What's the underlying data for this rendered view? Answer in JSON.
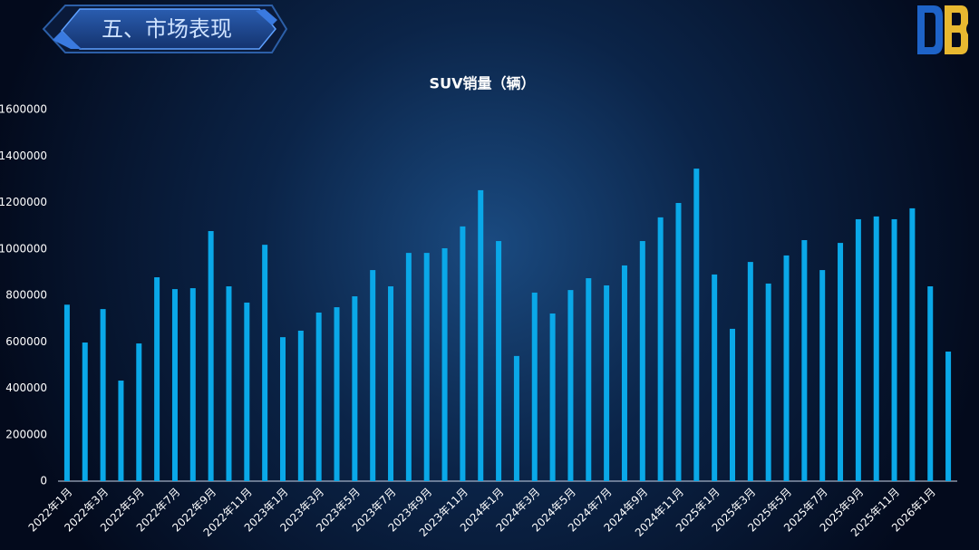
{
  "header": {
    "title": "五、市场表现"
  },
  "chart_data": {
    "type": "bar",
    "title": "SUV销量（辆）",
    "categories": [
      "2022年1月",
      null,
      "2022年3月",
      null,
      "2022年5月",
      null,
      "2022年7月",
      null,
      "2022年9月",
      null,
      "2022年11月",
      null,
      "2023年1月",
      null,
      "2023年3月",
      null,
      "2023年5月",
      null,
      "2023年7月",
      null,
      "2023年9月",
      null,
      "2023年11月",
      null,
      "2024年1月",
      null,
      "2024年3月",
      null,
      "2024年5月",
      null,
      "2024年7月",
      null,
      "2024年9月",
      null,
      "2024年11月",
      null,
      "2025年1月",
      null,
      "2025年3月",
      null,
      "2025年5月",
      null,
      "2025年7月",
      null,
      "2025年9月",
      null,
      "2025年11月",
      null,
      "2026年1月",
      null
    ],
    "values": [
      760000,
      597000,
      741000,
      433000,
      593000,
      878000,
      827000,
      831000,
      1077000,
      839000,
      769000,
      1018000,
      620000,
      648000,
      726000,
      749000,
      796000,
      909000,
      839000,
      983000,
      983000,
      1003000,
      1097000,
      1253000,
      1034000,
      539000,
      812000,
      722000,
      823000,
      874000,
      843000,
      929000,
      1034000,
      1136000,
      1198000,
      1346000,
      890000,
      656000,
      944000,
      851000,
      972000,
      1038000,
      909000,
      1026000,
      1128000,
      1140000,
      1128000,
      1175000,
      839000,
      558000
    ],
    "color": "#0aa8e8",
    "ylim": [
      0,
      1600000
    ],
    "yticks": [
      0,
      200000,
      400000,
      600000,
      800000,
      1000000,
      1200000,
      1400000,
      1600000
    ],
    "grid": false
  }
}
